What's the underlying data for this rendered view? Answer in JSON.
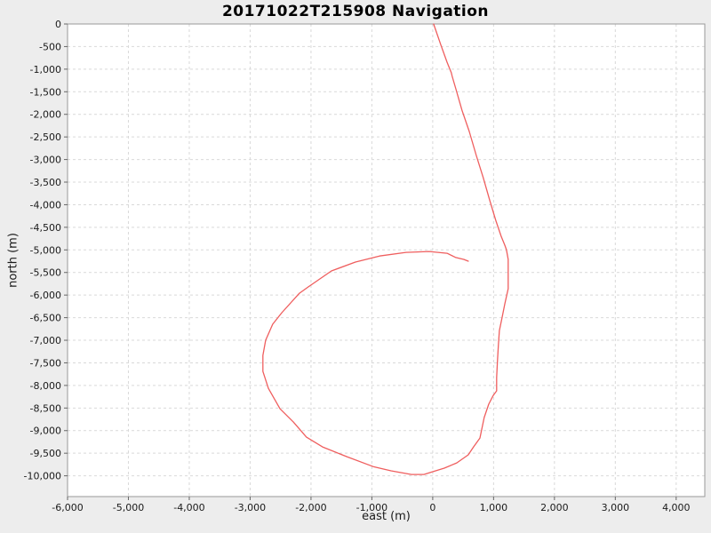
{
  "colors": {
    "page_background": "#ededed",
    "plot_background": "#ffffff",
    "grid": "#d9d9d9",
    "axis_border": "#999999",
    "tick_mark": "#666666",
    "tick_text": "#1a1a1a",
    "track_line": "#ef5e5e"
  },
  "chart_data": {
    "type": "line",
    "title": "20171022T215908 Navigation",
    "xlabel": "east (m)",
    "ylabel": "north (m)",
    "xlim": [
      -6000,
      4470
    ],
    "ylim": [
      -10460,
      0
    ],
    "xticks": [
      -6000,
      -5000,
      -4000,
      -3000,
      -2000,
      -1000,
      0,
      1000,
      2000,
      3000,
      4000
    ],
    "yticks": [
      0,
      -500,
      -1000,
      -1500,
      -2000,
      -2500,
      -3000,
      -3500,
      -4000,
      -4500,
      -5000,
      -5500,
      -6000,
      -6500,
      -7000,
      -7500,
      -8000,
      -8500,
      -9000,
      -9500,
      -10000
    ],
    "grid": true,
    "legend": false,
    "series": [
      {
        "name": "track",
        "color": "#ef5e5e",
        "points": [
          [
            15,
            0
          ],
          [
            130,
            -450
          ],
          [
            235,
            -845
          ],
          [
            305,
            -1080
          ],
          [
            320,
            -1160
          ],
          [
            380,
            -1435
          ],
          [
            480,
            -1910
          ],
          [
            600,
            -2380
          ],
          [
            715,
            -2910
          ],
          [
            830,
            -3400
          ],
          [
            935,
            -3895
          ],
          [
            1035,
            -4345
          ],
          [
            1125,
            -4700
          ],
          [
            1185,
            -4895
          ],
          [
            1210,
            -4995
          ],
          [
            1240,
            -5210
          ],
          [
            1240,
            -5565
          ],
          [
            1240,
            -5860
          ],
          [
            1185,
            -6195
          ],
          [
            1140,
            -6490
          ],
          [
            1095,
            -6785
          ],
          [
            1080,
            -7100
          ],
          [
            1065,
            -7435
          ],
          [
            1050,
            -7825
          ],
          [
            1050,
            -8120
          ],
          [
            995,
            -8220
          ],
          [
            920,
            -8415
          ],
          [
            845,
            -8710
          ],
          [
            775,
            -9165
          ],
          [
            670,
            -9360
          ],
          [
            585,
            -9535
          ],
          [
            395,
            -9715
          ],
          [
            190,
            -9830
          ],
          [
            0,
            -9910
          ],
          [
            -145,
            -9970
          ],
          [
            -350,
            -9970
          ],
          [
            -685,
            -9890
          ],
          [
            -980,
            -9795
          ],
          [
            -1415,
            -9575
          ],
          [
            -1810,
            -9360
          ],
          [
            -2075,
            -9145
          ],
          [
            -2290,
            -8810
          ],
          [
            -2510,
            -8515
          ],
          [
            -2700,
            -8065
          ],
          [
            -2790,
            -7690
          ],
          [
            -2790,
            -7335
          ],
          [
            -2745,
            -7000
          ],
          [
            -2630,
            -6645
          ],
          [
            -2480,
            -6390
          ],
          [
            -2190,
            -5960
          ],
          [
            -2045,
            -5820
          ],
          [
            -1665,
            -5465
          ],
          [
            -1270,
            -5270
          ],
          [
            -875,
            -5135
          ],
          [
            -440,
            -5055
          ],
          [
            -60,
            -5035
          ],
          [
            235,
            -5075
          ],
          [
            380,
            -5170
          ],
          [
            510,
            -5210
          ],
          [
            585,
            -5250
          ]
        ]
      }
    ]
  }
}
